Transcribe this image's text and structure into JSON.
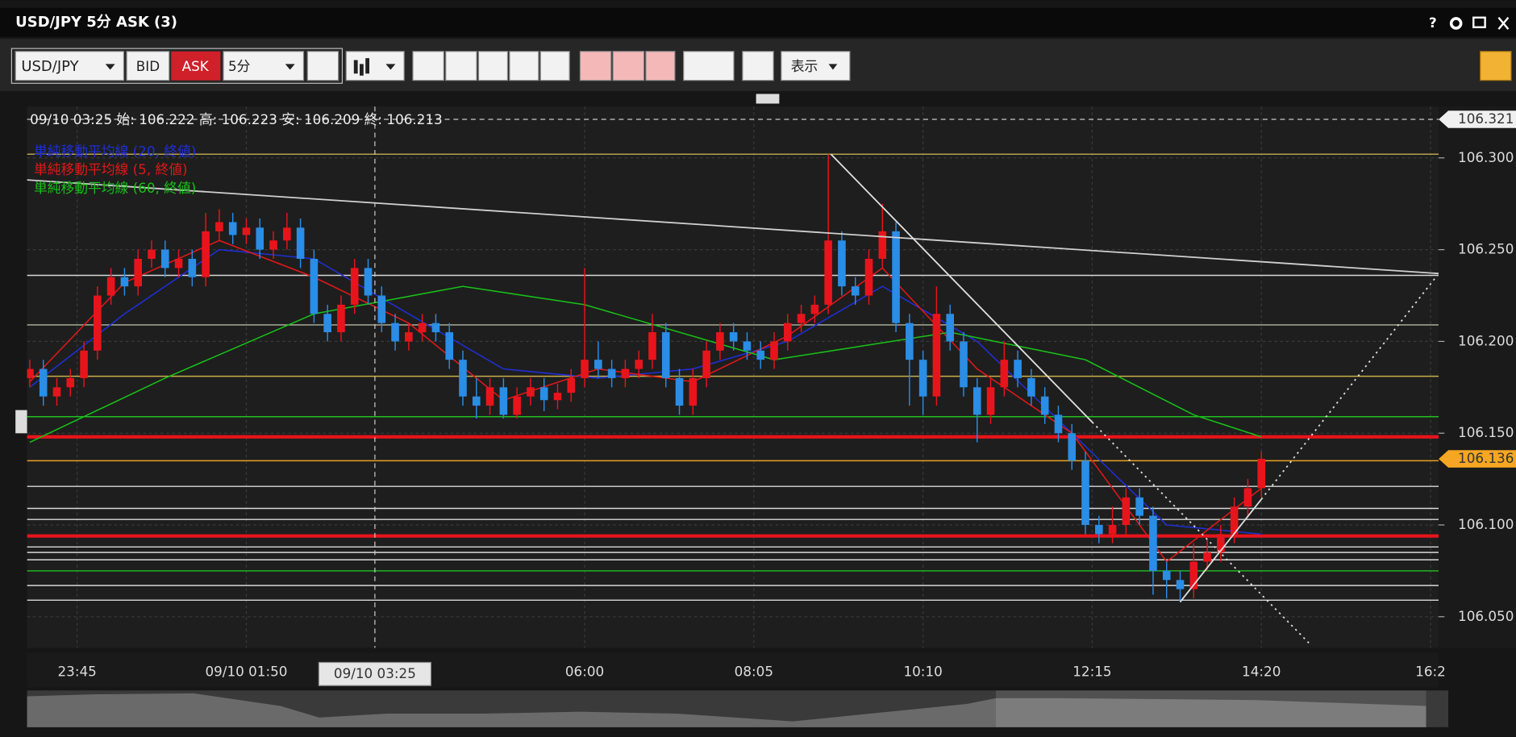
{
  "window": {
    "title": "USD/JPY 5分 ASK (3)",
    "help": "?"
  },
  "toolbar": {
    "symbol": "USD/JPY",
    "bid": "BID",
    "ask": "ASK",
    "interval": "5分",
    "view": "表示"
  },
  "chart_data": {
    "type": "candlestick",
    "info": "09/10 03:25 始: 106.222 高: 106.223 安: 106.209 終: 106.213",
    "crosshair": {
      "x": 25.5,
      "label": "09/10 03:25"
    },
    "xlim": [
      -0.2,
      104.1
    ],
    "xticks": [
      {
        "value": 3.5,
        "label": "23:45"
      },
      {
        "value": 16,
        "label": "09/10 01:50"
      },
      {
        "value": 41,
        "label": "06:00"
      },
      {
        "value": 53.5,
        "label": "08:05"
      },
      {
        "value": 66,
        "label": "10:10"
      },
      {
        "value": 78.5,
        "label": "12:15"
      },
      {
        "value": 91,
        "label": "14:20"
      },
      {
        "value": 103.5,
        "label": "16:2"
      }
    ],
    "ylim": [
      106.033,
      106.328
    ],
    "yticks": [
      {
        "value": 106.3,
        "label": "106.300"
      },
      {
        "value": 106.25,
        "label": "106.250"
      },
      {
        "value": 106.2,
        "label": "106.200"
      },
      {
        "value": 106.15,
        "label": "106.150"
      },
      {
        "value": 106.1,
        "label": "106.100"
      },
      {
        "value": 106.05,
        "label": "106.050"
      }
    ],
    "grid": true,
    "up_color": "#e8141c",
    "down_color": "#2a8de6",
    "candles": [
      [
        106.18,
        106.19,
        106.175,
        106.185
      ],
      [
        106.185,
        106.19,
        106.165,
        106.17
      ],
      [
        106.17,
        106.18,
        106.165,
        106.175
      ],
      [
        106.175,
        106.185,
        106.17,
        106.18
      ],
      [
        106.18,
        106.2,
        106.175,
        106.195
      ],
      [
        106.195,
        106.23,
        106.19,
        106.225
      ],
      [
        106.225,
        106.24,
        106.22,
        106.235
      ],
      [
        106.235,
        106.24,
        106.225,
        106.23
      ],
      [
        106.23,
        106.25,
        106.225,
        106.245
      ],
      [
        106.245,
        106.255,
        106.24,
        106.25
      ],
      [
        106.25,
        106.255,
        106.235,
        106.24
      ],
      [
        106.24,
        106.25,
        106.235,
        106.245
      ],
      [
        106.245,
        106.25,
        106.23,
        106.235
      ],
      [
        106.235,
        106.27,
        106.23,
        106.26
      ],
      [
        106.26,
        106.272,
        106.255,
        106.265
      ],
      [
        106.265,
        106.27,
        106.253,
        106.258
      ],
      [
        106.258,
        106.267,
        106.253,
        106.262
      ],
      [
        106.262,
        106.267,
        106.245,
        106.25
      ],
      [
        106.25,
        106.26,
        106.245,
        106.255
      ],
      [
        106.255,
        106.27,
        106.25,
        106.262
      ],
      [
        106.262,
        106.267,
        106.24,
        106.245
      ],
      [
        106.245,
        106.25,
        106.21,
        106.215
      ],
      [
        106.215,
        106.22,
        106.2,
        106.205
      ],
      [
        106.205,
        106.225,
        106.2,
        106.22
      ],
      [
        106.22,
        106.245,
        106.215,
        106.24
      ],
      [
        106.24,
        106.245,
        106.22,
        106.225
      ],
      [
        106.225,
        106.23,
        106.205,
        106.21
      ],
      [
        106.21,
        106.215,
        106.195,
        106.2
      ],
      [
        106.2,
        106.21,
        106.195,
        106.205
      ],
      [
        106.205,
        106.215,
        106.2,
        106.21
      ],
      [
        106.21,
        106.215,
        106.2,
        106.205
      ],
      [
        106.205,
        106.21,
        106.185,
        106.19
      ],
      [
        106.19,
        106.195,
        106.165,
        106.17
      ],
      [
        106.17,
        106.18,
        106.158,
        106.165
      ],
      [
        106.165,
        106.18,
        106.16,
        106.175
      ],
      [
        106.175,
        106.18,
        106.158,
        106.16
      ],
      [
        106.16,
        106.175,
        106.158,
        106.17
      ],
      [
        106.17,
        106.18,
        106.165,
        106.175
      ],
      [
        106.175,
        106.18,
        106.162,
        106.168
      ],
      [
        106.168,
        106.177,
        106.163,
        106.172
      ],
      [
        106.172,
        106.185,
        106.167,
        106.18
      ],
      [
        106.18,
        106.24,
        106.175,
        106.19
      ],
      [
        106.19,
        106.2,
        106.18,
        106.185
      ],
      [
        106.185,
        106.19,
        106.175,
        106.18
      ],
      [
        106.18,
        106.19,
        106.175,
        106.185
      ],
      [
        106.185,
        106.195,
        106.18,
        106.19
      ],
      [
        106.19,
        106.215,
        106.185,
        106.205
      ],
      [
        106.205,
        106.21,
        106.175,
        106.18
      ],
      [
        106.18,
        106.185,
        106.16,
        106.165
      ],
      [
        106.165,
        106.185,
        106.16,
        106.18
      ],
      [
        106.18,
        106.2,
        106.175,
        106.195
      ],
      [
        106.195,
        106.21,
        106.19,
        106.205
      ],
      [
        106.205,
        106.21,
        106.195,
        106.2
      ],
      [
        106.2,
        106.205,
        106.19,
        106.195
      ],
      [
        106.195,
        106.2,
        106.185,
        106.19
      ],
      [
        106.19,
        106.205,
        106.185,
        106.2
      ],
      [
        106.2,
        106.215,
        106.195,
        106.21
      ],
      [
        106.21,
        106.22,
        106.205,
        106.215
      ],
      [
        106.215,
        106.225,
        106.21,
        106.22
      ],
      [
        106.22,
        106.302,
        106.215,
        106.255
      ],
      [
        106.255,
        106.26,
        106.225,
        106.23
      ],
      [
        106.23,
        106.235,
        106.22,
        106.225
      ],
      [
        106.225,
        106.25,
        106.22,
        106.245
      ],
      [
        106.245,
        106.275,
        106.24,
        106.26
      ],
      [
        106.26,
        106.265,
        106.205,
        106.21
      ],
      [
        106.21,
        106.215,
        106.165,
        106.19
      ],
      [
        106.19,
        106.195,
        106.16,
        106.17
      ],
      [
        106.17,
        106.23,
        106.165,
        106.215
      ],
      [
        106.215,
        106.22,
        106.195,
        106.2
      ],
      [
        106.2,
        106.205,
        106.17,
        106.175
      ],
      [
        106.175,
        106.18,
        106.145,
        106.16
      ],
      [
        106.16,
        106.18,
        106.155,
        106.175
      ],
      [
        106.175,
        106.2,
        106.17,
        106.19
      ],
      [
        106.19,
        106.195,
        106.175,
        106.18
      ],
      [
        106.18,
        106.185,
        106.165,
        106.17
      ],
      [
        106.17,
        106.175,
        106.155,
        106.16
      ],
      [
        106.16,
        106.165,
        106.145,
        106.15
      ],
      [
        106.15,
        106.155,
        106.13,
        106.135
      ],
      [
        106.135,
        106.14,
        106.095,
        106.1
      ],
      [
        106.1,
        106.105,
        106.09,
        106.095
      ],
      [
        106.095,
        106.11,
        106.09,
        106.1
      ],
      [
        106.1,
        106.12,
        106.095,
        106.115
      ],
      [
        106.115,
        106.12,
        106.1,
        106.105
      ],
      [
        106.105,
        106.11,
        106.062,
        106.075
      ],
      [
        106.075,
        106.08,
        106.06,
        106.07
      ],
      [
        106.07,
        106.075,
        106.058,
        106.065
      ],
      [
        106.065,
        106.09,
        106.06,
        106.08
      ],
      [
        106.08,
        106.092,
        106.075,
        106.085
      ],
      [
        106.085,
        106.1,
        106.08,
        106.095
      ],
      [
        106.095,
        106.115,
        106.09,
        106.11
      ],
      [
        106.11,
        106.125,
        106.105,
        106.12
      ],
      [
        106.12,
        106.14,
        106.115,
        106.136
      ]
    ],
    "series": [
      {
        "name": "単純移動平均線 (20, 終値)",
        "color": "#1e2fd6",
        "x": [
          0,
          7,
          14,
          21,
          28,
          35,
          42,
          49,
          56,
          63,
          70,
          77,
          84,
          91
        ],
        "values": [
          106.175,
          106.215,
          106.25,
          106.245,
          106.215,
          106.185,
          106.18,
          106.185,
          106.2,
          106.23,
          106.2,
          106.15,
          106.1,
          106.095
        ]
      },
      {
        "name": "単純移動平均線 (5, 終値)",
        "color": "#e01818",
        "x": [
          0,
          7,
          14,
          21,
          28,
          35,
          42,
          49,
          56,
          63,
          70,
          77,
          84,
          91
        ],
        "values": [
          106.178,
          106.232,
          106.255,
          106.235,
          106.21,
          106.168,
          106.185,
          106.178,
          106.203,
          106.24,
          106.185,
          106.15,
          106.08,
          106.12
        ]
      },
      {
        "name": "単純移動平均線 (60, 終値)",
        "color": "#18c018",
        "x": [
          0,
          10,
          21,
          32,
          41,
          55,
          68,
          78,
          86,
          91
        ],
        "values": [
          106.145,
          106.18,
          106.215,
          106.23,
          106.22,
          106.19,
          106.205,
          106.19,
          106.16,
          106.148
        ]
      }
    ],
    "hlines": [
      {
        "value": 106.302,
        "color": "#b8a050"
      },
      {
        "value": 106.236,
        "color": "#d8d8d8"
      },
      {
        "value": 106.209,
        "color": "#b0b8a0"
      },
      {
        "value": 106.181,
        "color": "#c8b048"
      },
      {
        "value": 106.159,
        "color": "#20c020"
      },
      {
        "value": 106.148,
        "color": "#e8141c",
        "thick": true
      },
      {
        "value": 106.135,
        "color": "#e8a020"
      },
      {
        "value": 106.121,
        "color": "#d8d8d8"
      },
      {
        "value": 106.109,
        "color": "#d8d8d8"
      },
      {
        "value": 106.103,
        "color": "#d8d8d8"
      },
      {
        "value": 106.094,
        "color": "#e8141c",
        "thick": true
      },
      {
        "value": 106.088,
        "color": "#d8d8d8"
      },
      {
        "value": 106.085,
        "color": "#d8d8d8"
      },
      {
        "value": 106.081,
        "color": "#d8d8d8"
      },
      {
        "value": 106.075,
        "color": "#20c020"
      },
      {
        "value": 106.067,
        "color": "#d8d8d8"
      },
      {
        "value": 106.059,
        "color": "#d8d8d8"
      }
    ],
    "trendlines": [
      {
        "x": [
          -0.2,
          104.1
        ],
        "y": [
          106.288,
          106.237
        ],
        "color": "#d0d0d0",
        "dashed": false
      },
      {
        "x": [
          59.2,
          78.5
        ],
        "y": [
          106.302,
          106.156
        ],
        "color": "#e0e0e0",
        "dashed": false
      },
      {
        "x": [
          78.5,
          94.6
        ],
        "y": [
          106.156,
          106.035
        ],
        "color": "#e0e0e0",
        "dashed": true
      },
      {
        "x": [
          85,
          91
        ],
        "y": [
          106.058,
          106.114
        ],
        "color": "#e0e0e0",
        "dashed": false
      },
      {
        "x": [
          91,
          104
        ],
        "y": [
          106.114,
          106.236
        ],
        "color": "#e0e0e0",
        "dashed": true
      }
    ],
    "price_labels": [
      {
        "value": 106.321,
        "label": "106.321",
        "color": "#f0f0f0"
      },
      {
        "value": 106.136,
        "label": "106.136",
        "color": "#f5a623"
      }
    ]
  }
}
